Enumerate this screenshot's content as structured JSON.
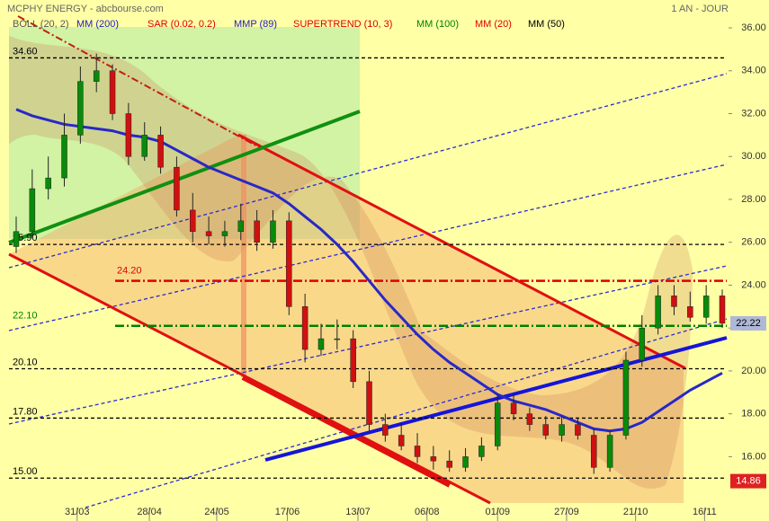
{
  "chart_data": {
    "type": "candlestick",
    "title": "MCPHY ENERGY - abcbourse.com",
    "period": "1 AN - JOUR",
    "indicators": [
      {
        "name": "BOLL (20, 2)",
        "color": "#555555"
      },
      {
        "name": "MM (200)",
        "color": "#2020c0"
      },
      {
        "name": "SAR (0.02, 0.2)",
        "color": "#dd0000"
      },
      {
        "name": "MMP (89)",
        "color": "#2020c0"
      },
      {
        "name": "SUPERTREND (10, 3)",
        "color": "#dd0000"
      },
      {
        "name": "MM (100)",
        "color": "#008000"
      },
      {
        "name": "MM (20)",
        "color": "#dd0000"
      },
      {
        "name": "MM (50)",
        "color": "#000000",
        "values": [
          32.2,
          31.9,
          31.7,
          31.5,
          31.4,
          31.3,
          31.2,
          31.0,
          30.9,
          30.7,
          30.3,
          29.9,
          29.5,
          29.2,
          28.9,
          28.6,
          28.3,
          27.8,
          27.2,
          26.6,
          25.9,
          25.1,
          24.2,
          23.3,
          22.5,
          21.7,
          21.0,
          20.4,
          19.9,
          19.4,
          18.9,
          18.6,
          18.4,
          18.2,
          17.9,
          17.6,
          17.3,
          17.2,
          17.3,
          17.6,
          18.1,
          18.6,
          19.1,
          19.5,
          19.9
        ],
        "line_color": "#2828c8"
      }
    ],
    "open": [
      25.8,
      26.5,
      28.5,
      29.0,
      31.0,
      33.5,
      34.0,
      32.0,
      30.0,
      31.0,
      29.5,
      27.5,
      26.5,
      26.3,
      26.5,
      27.0,
      26.0,
      27.0,
      23.0,
      21.0,
      21.5,
      21.5,
      19.5,
      17.5,
      17.0,
      16.5,
      16.0,
      15.8,
      15.5,
      16.0,
      16.5,
      18.5,
      18.0,
      17.5,
      17.0,
      17.5,
      17.0,
      15.5,
      17.0,
      20.5,
      22.0,
      23.5,
      23.0,
      22.5,
      23.5
    ],
    "high": [
      27.2,
      29.4,
      30.0,
      32.0,
      34.2,
      34.8,
      34.3,
      32.5,
      31.6,
      31.4,
      30.0,
      28.3,
      27.2,
      27.0,
      27.8,
      27.5,
      27.5,
      27.4,
      23.6,
      22.2,
      22.4,
      21.9,
      20.0,
      18.0,
      17.6,
      17.1,
      16.5,
      16.3,
      16.4,
      16.9,
      18.9,
      18.9,
      18.3,
      17.9,
      17.9,
      17.8,
      17.3,
      17.2,
      20.9,
      22.6,
      24.0,
      24.0,
      23.7,
      24.0,
      23.8
    ],
    "low": [
      25.5,
      26.2,
      28.0,
      28.6,
      30.6,
      33.0,
      31.7,
      29.6,
      29.8,
      29.2,
      27.2,
      26.0,
      25.9,
      25.8,
      26.1,
      25.6,
      25.7,
      22.6,
      20.4,
      20.7,
      21.0,
      19.2,
      17.2,
      16.7,
      16.3,
      15.7,
      15.4,
      15.3,
      15.3,
      15.8,
      16.3,
      17.7,
      17.2,
      16.8,
      16.7,
      16.8,
      15.2,
      15.3,
      16.8,
      20.2,
      21.7,
      22.6,
      22.3,
      22.2,
      22.0
    ],
    "close": [
      26.5,
      28.5,
      29.0,
      31.0,
      33.5,
      34.0,
      32.0,
      30.0,
      31.0,
      29.5,
      27.5,
      26.5,
      26.3,
      26.5,
      27.0,
      26.0,
      27.0,
      23.0,
      21.0,
      21.5,
      21.5,
      19.5,
      17.5,
      17.0,
      16.5,
      16.0,
      15.8,
      15.5,
      16.0,
      16.5,
      18.5,
      18.0,
      17.5,
      17.0,
      17.5,
      17.0,
      15.5,
      17.0,
      20.5,
      22.0,
      23.5,
      23.0,
      22.5,
      23.5,
      22.22
    ],
    "up_color": "#0a8a0a",
    "down_color": "#d01010",
    "xlim": [
      0,
      44
    ],
    "xticks": [
      {
        "value": 3.8,
        "label": "31/03"
      },
      {
        "value": 8.3,
        "label": "28/04"
      },
      {
        "value": 12.5,
        "label": "24/05"
      },
      {
        "value": 16.9,
        "label": "17/06"
      },
      {
        "value": 21.3,
        "label": "13/07"
      },
      {
        "value": 25.6,
        "label": "06/08"
      },
      {
        "value": 30.0,
        "label": "01/09"
      },
      {
        "value": 34.3,
        "label": "27/09"
      },
      {
        "value": 38.6,
        "label": "21/10"
      },
      {
        "value": 42.9,
        "label": "16/11"
      }
    ],
    "ylim": [
      13,
      37.3
    ],
    "yticks": [
      {
        "value": 16,
        "label": "16.00"
      },
      {
        "value": 18,
        "label": "18.00"
      },
      {
        "value": 20,
        "label": "20.00"
      },
      {
        "value": 22,
        "label": "22.00"
      },
      {
        "value": 24,
        "label": "24.00"
      },
      {
        "value": 26,
        "label": "26.00"
      },
      {
        "value": 28,
        "label": "28.00"
      },
      {
        "value": 30,
        "label": "30.00"
      },
      {
        "value": 32,
        "label": "32.00"
      },
      {
        "value": 34,
        "label": "34.00"
      },
      {
        "value": 36,
        "label": "36.00"
      }
    ],
    "levels": [
      {
        "value": 34.6,
        "label": "34.60",
        "color": "#000000",
        "big": false
      },
      {
        "value": 25.9,
        "label": "25.90",
        "color": "#000000",
        "big": false
      },
      {
        "value": 24.2,
        "label": "24.20",
        "color": "#dd0000",
        "big": true
      },
      {
        "value": 22.1,
        "label": "22.10",
        "color": "#008000",
        "big": true
      },
      {
        "value": 20.1,
        "label": "20.10",
        "color": "#000000",
        "big": false
      },
      {
        "value": 17.8,
        "label": "17.80",
        "color": "#000000",
        "big": false
      },
      {
        "value": 15,
        "label": "15.00",
        "color": "#000000",
        "big": false
      }
    ],
    "price_tags": [
      {
        "value": 22.22,
        "color": "#b0b8d8",
        "text_color": "#000000"
      },
      {
        "value": 14.86,
        "color": "#e02020",
        "text_color": "#ffffff"
      }
    ]
  }
}
